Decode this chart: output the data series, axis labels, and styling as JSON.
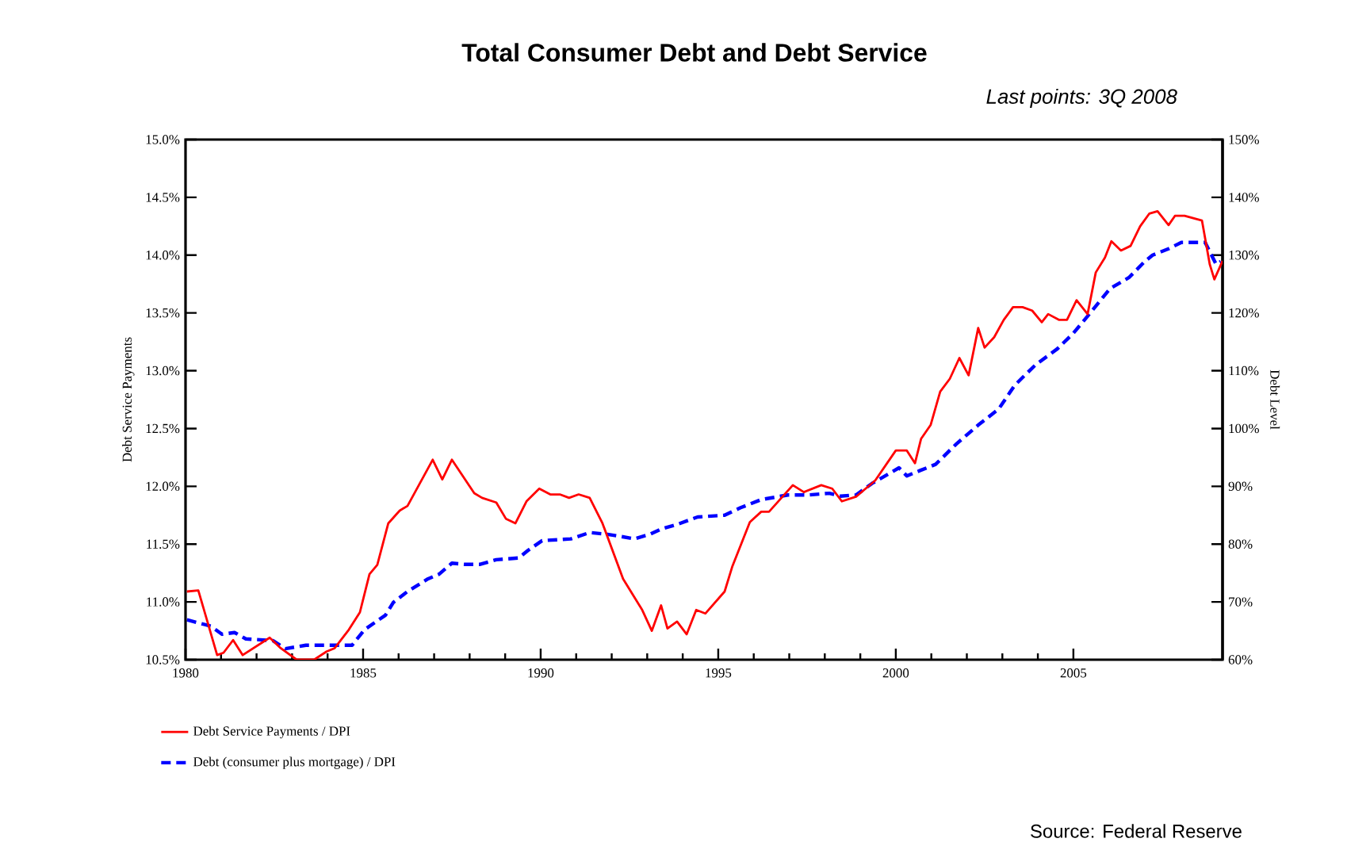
{
  "chart_data": {
    "type": "line",
    "title": "Total Consumer Debt and Debt Service",
    "subtitle": "Last points: 3Q 2008",
    "ylabel": "Debt Service Payments",
    "y2label": "Debt Level",
    "annotations": [
      "Source: Federal Reserve"
    ],
    "xlim": [
      1980,
      2009.2
    ],
    "xticks": [
      1980,
      1985,
      1990,
      1995,
      2000,
      2005
    ],
    "ylim": [
      10.5,
      15
    ],
    "yticks": [
      {
        "value": 10.5,
        "label": "10.5%"
      },
      {
        "value": 11,
        "label": "11.0%"
      },
      {
        "value": 11.5,
        "label": "11.5%"
      },
      {
        "value": 12,
        "label": "12.0%"
      },
      {
        "value": 12.5,
        "label": "12.5%"
      },
      {
        "value": 13,
        "label": "13.0%"
      },
      {
        "value": 13.5,
        "label": "13.5%"
      },
      {
        "value": 14,
        "label": "14.0%"
      },
      {
        "value": 14.5,
        "label": "14.5%"
      },
      {
        "value": 15,
        "label": "15.0%"
      }
    ],
    "y2lim": [
      60,
      150
    ],
    "y2ticks": [
      {
        "value": 60,
        "label": "60%"
      },
      {
        "value": 70,
        "label": "70%"
      },
      {
        "value": 80,
        "label": "80%"
      },
      {
        "value": 90,
        "label": "90%"
      },
      {
        "value": 100,
        "label": "100%"
      },
      {
        "value": 110,
        "label": "110%"
      },
      {
        "value": 120,
        "label": "120%"
      },
      {
        "value": 130,
        "label": "130%"
      },
      {
        "value": 140,
        "label": "140%"
      },
      {
        "value": 150,
        "label": "150%"
      }
    ],
    "legend": "bottom",
    "marker": "none",
    "series": [
      {
        "name": "Debt Service Payments / DPI",
        "color": "#ff0000",
        "line_style": "solid",
        "x": [
          1980.04,
          1980.36,
          1980.89,
          1981.07,
          1981.34,
          1981.61,
          1982.37,
          1982.68,
          1983.13,
          1983.62,
          1983.97,
          1984.2,
          1984.6,
          1984.91,
          1985.18,
          1985.4,
          1985.71,
          1986.03,
          1986.25,
          1986.96,
          1987.23,
          1987.5,
          1988.13,
          1988.35,
          1988.75,
          1989.02,
          1989.29,
          1989.6,
          1989.96,
          1990.27,
          1990.54,
          1990.8,
          1991.07,
          1991.38,
          1991.74,
          1992.32,
          1992.86,
          1993.13,
          1993.39,
          1993.57,
          1993.84,
          1994.11,
          1994.38,
          1994.64,
          1995.18,
          1995.4,
          1995.89,
          1996.21,
          1996.43,
          1997.1,
          1997.41,
          1997.9,
          1998.21,
          1998.48,
          1998.88,
          1999.42,
          2000.0,
          2000.31,
          2000.54,
          2000.71,
          2000.98,
          2001.25,
          2001.52,
          2001.79,
          2002.05,
          2002.32,
          2002.5,
          2002.77,
          2003.04,
          2003.3,
          2003.57,
          2003.84,
          2004.11,
          2004.29,
          2004.6,
          2004.82,
          2005.09,
          2005.4,
          2005.63,
          2005.89,
          2006.07,
          2006.34,
          2006.61,
          2006.88,
          2007.14,
          2007.37,
          2007.68,
          2007.86,
          2008.13,
          2008.62,
          2008.84,
          2008.97,
          2009.2
        ],
        "values": [
          11.09,
          11.1,
          10.54,
          10.56,
          10.67,
          10.54,
          10.69,
          10.6,
          10.5,
          10.5,
          10.57,
          10.6,
          10.76,
          10.91,
          11.24,
          11.32,
          11.68,
          11.79,
          11.83,
          12.23,
          12.06,
          12.23,
          11.94,
          11.9,
          11.86,
          11.72,
          11.68,
          11.87,
          11.98,
          11.93,
          11.93,
          11.9,
          11.93,
          11.9,
          11.68,
          11.2,
          10.93,
          10.75,
          10.97,
          10.77,
          10.83,
          10.72,
          10.93,
          10.9,
          11.09,
          11.31,
          11.69,
          11.78,
          11.78,
          12.01,
          11.95,
          12.01,
          11.98,
          11.87,
          11.91,
          12.05,
          12.31,
          12.31,
          12.2,
          12.41,
          12.53,
          12.82,
          12.93,
          13.11,
          12.96,
          13.37,
          13.2,
          13.29,
          13.44,
          13.55,
          13.55,
          13.52,
          13.42,
          13.49,
          13.44,
          13.44,
          13.61,
          13.49,
          13.85,
          13.98,
          14.12,
          14.04,
          14.08,
          14.25,
          14.36,
          14.38,
          14.26,
          14.34,
          14.34,
          14.3,
          13.92,
          13.79,
          13.95
        ]
      },
      {
        "name": "Debt (consumer plus mortgage) / DPI",
        "color": "#0000ff",
        "line_style": "dashed",
        "axis": "y2",
        "x": [
          1980.04,
          1980.71,
          1981.03,
          1981.38,
          1981.7,
          1982.46,
          1982.81,
          1983.39,
          1984.15,
          1984.69,
          1985.04,
          1985.63,
          1985.85,
          1986.25,
          1986.83,
          1987.14,
          1987.5,
          1987.86,
          1988.3,
          1988.75,
          1989.38,
          1989.64,
          1990.04,
          1990.85,
          1991.38,
          1991.88,
          1992.19,
          1992.63,
          1993.08,
          1993.39,
          1993.84,
          1994.42,
          1995.18,
          1995.63,
          1996.21,
          1996.96,
          1997.54,
          1998.13,
          1998.44,
          1998.88,
          1999.33,
          2000.09,
          2000.31,
          2000.67,
          2001.12,
          2001.7,
          2002.32,
          2002.9,
          2003.35,
          2003.93,
          2004.55,
          2005.0,
          2005.49,
          2006.03,
          2006.56,
          2007.01,
          2007.23,
          2007.68,
          2008.04,
          2008.71,
          2009.02,
          2009.15
        ],
        "values": [
          66.9,
          65.8,
          64.4,
          64.7,
          63.6,
          63.3,
          61.9,
          62.5,
          62.5,
          62.5,
          65.2,
          67.7,
          69.9,
          71.8,
          74.0,
          74.8,
          76.7,
          76.5,
          76.5,
          77.3,
          77.6,
          78.9,
          80.6,
          80.9,
          82.0,
          81.7,
          81.4,
          80.9,
          81.7,
          82.6,
          83.4,
          84.7,
          85.0,
          86.3,
          87.7,
          88.5,
          88.5,
          88.8,
          88.3,
          88.5,
          90.5,
          93.2,
          91.8,
          92.7,
          93.8,
          97.3,
          100.6,
          103.4,
          107.5,
          111.0,
          113.8,
          116.5,
          120.1,
          124.2,
          126.1,
          128.9,
          130.0,
          131.1,
          132.2,
          132.2,
          128.4,
          128.9
        ]
      }
    ]
  }
}
